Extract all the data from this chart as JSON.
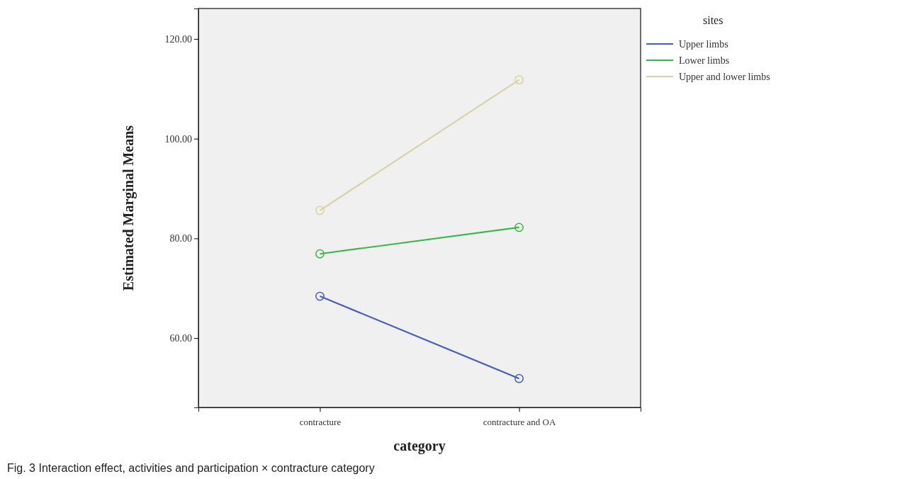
{
  "chart_data": {
    "type": "line",
    "xlabel": "category",
    "ylabel": "Estimated Marginal Means",
    "legend_title": "sites",
    "categories": [
      "contracture",
      "contracture and OA"
    ],
    "series": [
      {
        "name": "Upper limbs",
        "color": "#4a5db8",
        "values": [
          68.4,
          51.9
        ]
      },
      {
        "name": "Lower limbs",
        "color": "#3cb84a",
        "values": [
          76.9,
          82.2
        ]
      },
      {
        "name": "Upper and lower limbs",
        "color": "#d8d3a6",
        "values": [
          85.6,
          111.8
        ]
      }
    ],
    "ylim": [
      46.1,
      126.1
    ],
    "yticks": [
      {
        "value": 60,
        "label": "60.00"
      },
      {
        "value": 80,
        "label": "80.00"
      },
      {
        "value": 100,
        "label": "100.00"
      },
      {
        "value": 120,
        "label": "120.00"
      }
    ],
    "marker": "circle",
    "legend": "top right",
    "grid": false,
    "annotations": [
      "Fig. 3  Interaction effect, activities and participation × contracture category"
    ]
  }
}
